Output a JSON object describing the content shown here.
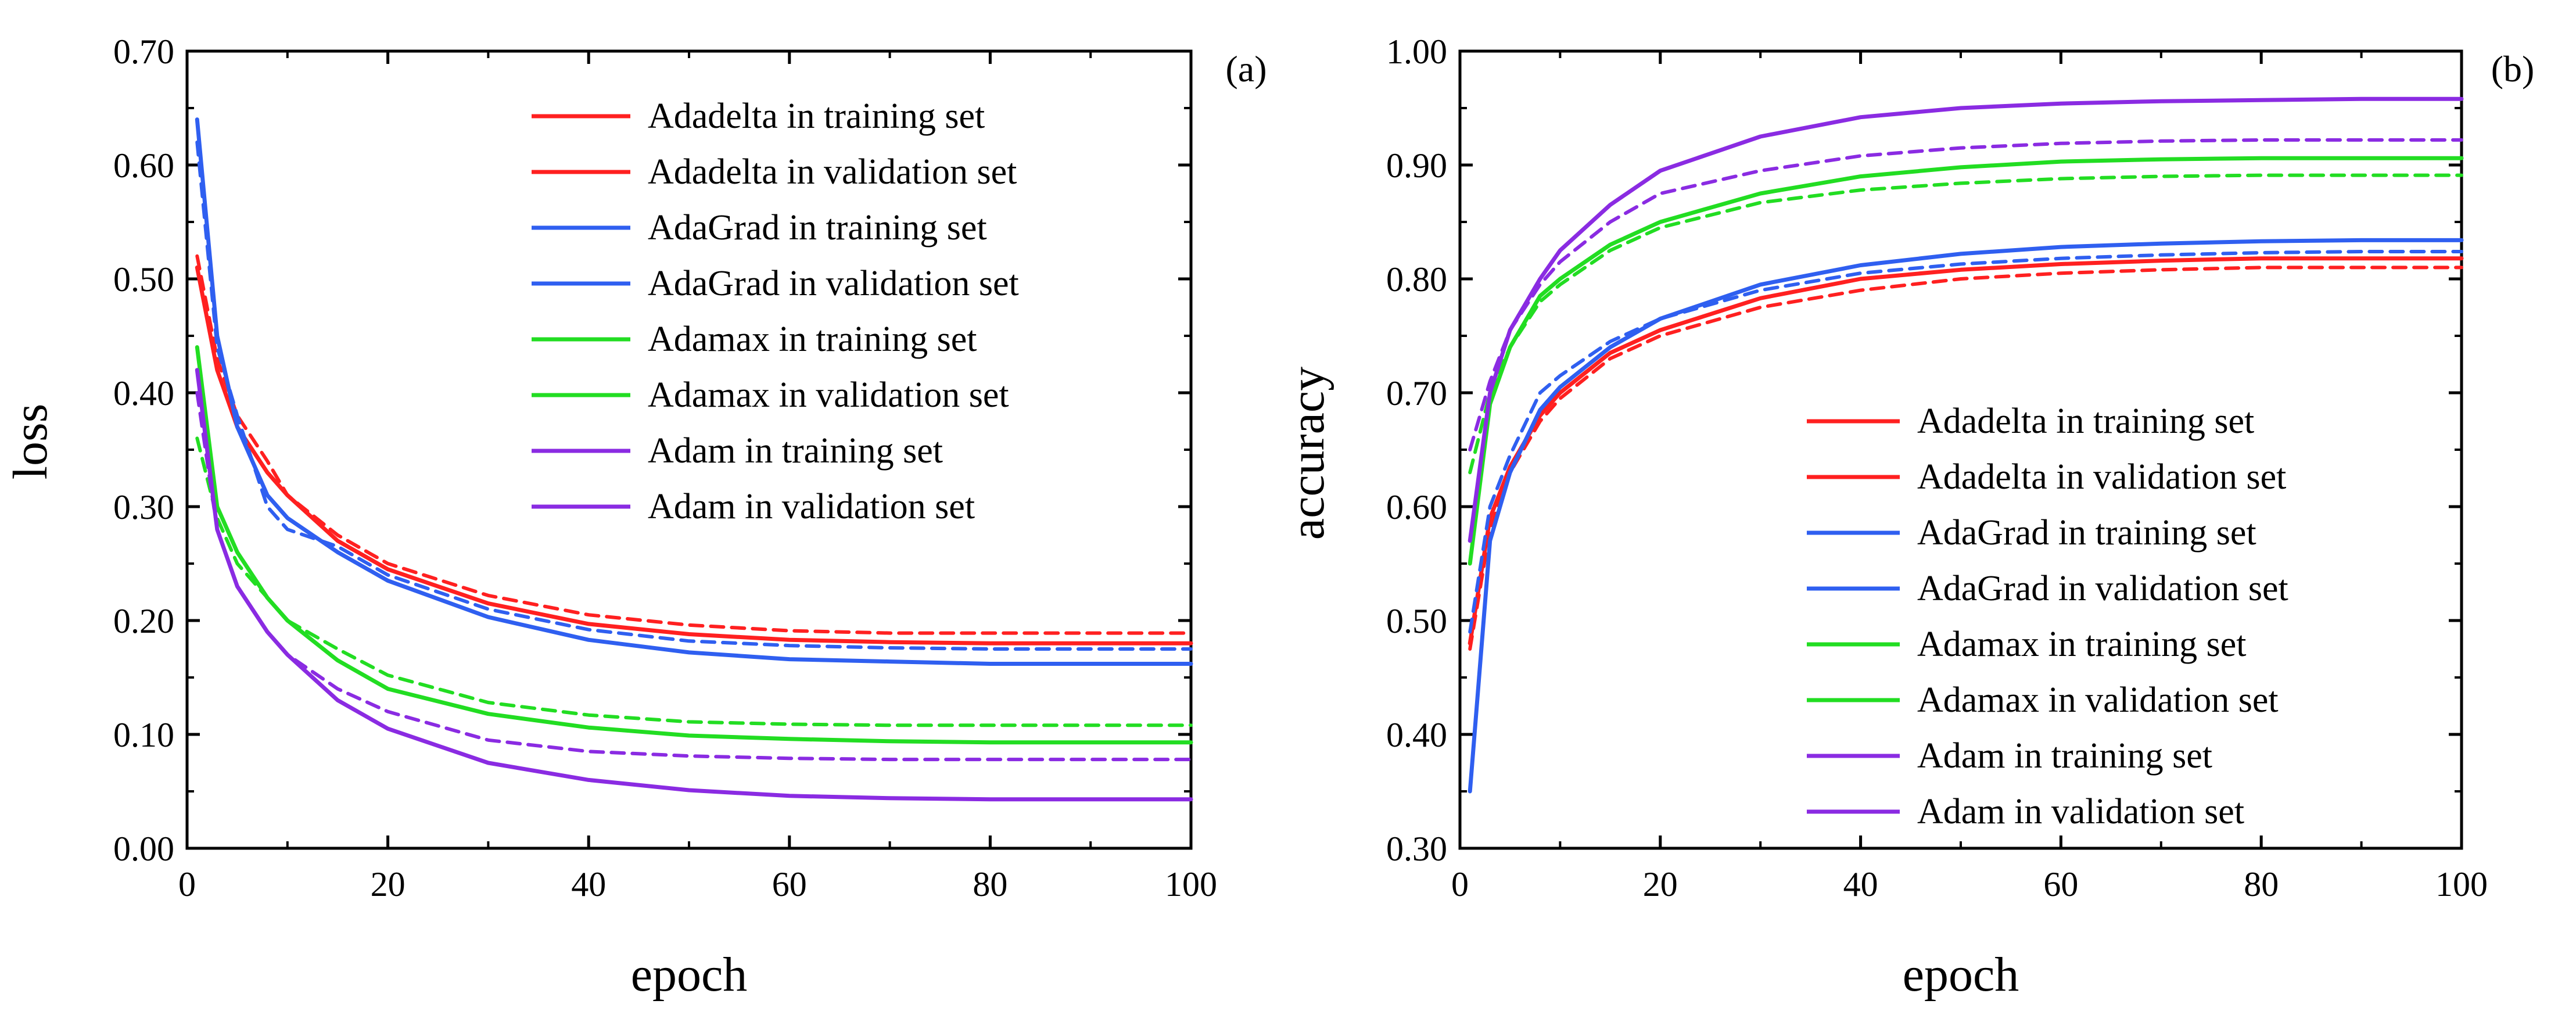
{
  "chart_data": [
    {
      "panel": "(a)",
      "type": "line",
      "xlabel": "epoch",
      "ylabel": "loss",
      "xlim": [
        0,
        100
      ],
      "ylim": [
        0,
        0.7
      ],
      "xticks": [
        "0",
        "20",
        "40",
        "60",
        "80",
        "100"
      ],
      "yticks": [
        "0.00",
        "0.10",
        "0.20",
        "0.30",
        "0.40",
        "0.50",
        "0.60",
        "0.70"
      ],
      "legend_position": "top-right",
      "x": [
        1,
        3,
        5,
        8,
        10,
        15,
        20,
        30,
        40,
        50,
        60,
        70,
        80,
        90,
        100
      ],
      "series": [
        {
          "name": "Adadelta in training set",
          "color": "#ff2020",
          "dash": false,
          "values": [
            0.51,
            0.42,
            0.37,
            0.33,
            0.31,
            0.27,
            0.245,
            0.215,
            0.197,
            0.188,
            0.183,
            0.181,
            0.18,
            0.18,
            0.18
          ]
        },
        {
          "name": "Adadelta in validation set",
          "color": "#ff2020",
          "dash": true,
          "values": [
            0.52,
            0.43,
            0.38,
            0.34,
            0.31,
            0.275,
            0.25,
            0.222,
            0.205,
            0.196,
            0.191,
            0.189,
            0.189,
            0.189,
            0.189
          ]
        },
        {
          "name": "AdaGrad in training set",
          "color": "#2f5ff0",
          "dash": false,
          "values": [
            0.64,
            0.45,
            0.37,
            0.31,
            0.29,
            0.26,
            0.235,
            0.203,
            0.183,
            0.172,
            0.166,
            0.164,
            0.162,
            0.162,
            0.162
          ]
        },
        {
          "name": "AdaGrad in validation set",
          "color": "#2f5ff0",
          "dash": true,
          "values": [
            0.62,
            0.44,
            0.38,
            0.3,
            0.28,
            0.265,
            0.24,
            0.21,
            0.192,
            0.182,
            0.178,
            0.176,
            0.175,
            0.175,
            0.175
          ]
        },
        {
          "name": "Adamax in training set",
          "color": "#22dd22",
          "dash": false,
          "values": [
            0.44,
            0.3,
            0.26,
            0.22,
            0.2,
            0.165,
            0.14,
            0.118,
            0.106,
            0.099,
            0.096,
            0.094,
            0.093,
            0.093,
            0.093
          ]
        },
        {
          "name": "Adamax in validation set",
          "color": "#22dd22",
          "dash": true,
          "values": [
            0.36,
            0.29,
            0.25,
            0.22,
            0.2,
            0.175,
            0.152,
            0.128,
            0.117,
            0.111,
            0.109,
            0.108,
            0.108,
            0.108,
            0.108
          ]
        },
        {
          "name": "Adam in training set",
          "color": "#8a2be2",
          "dash": false,
          "values": [
            0.42,
            0.28,
            0.23,
            0.19,
            0.17,
            0.13,
            0.105,
            0.075,
            0.06,
            0.051,
            0.046,
            0.044,
            0.043,
            0.043,
            0.043
          ]
        },
        {
          "name": "Adam in validation set",
          "color": "#8a2be2",
          "dash": true,
          "values": [
            0.4,
            0.28,
            0.23,
            0.19,
            0.17,
            0.14,
            0.12,
            0.095,
            0.085,
            0.081,
            0.079,
            0.078,
            0.078,
            0.078,
            0.078
          ]
        }
      ]
    },
    {
      "panel": "(b)",
      "type": "line",
      "xlabel": "epoch",
      "ylabel": "accuracy",
      "xlim": [
        0,
        100
      ],
      "ylim": [
        0.3,
        1.0
      ],
      "xticks": [
        "0",
        "20",
        "40",
        "60",
        "80",
        "100"
      ],
      "yticks": [
        "0.30",
        "0.40",
        "0.50",
        "0.60",
        "0.70",
        "0.80",
        "0.90",
        "1.00"
      ],
      "legend_position": "bottom-right",
      "x": [
        1,
        3,
        5,
        8,
        10,
        15,
        20,
        30,
        40,
        50,
        60,
        70,
        80,
        90,
        100
      ],
      "series": [
        {
          "name": "Adadelta in training set",
          "color": "#ff2020",
          "dash": false,
          "values": [
            0.48,
            0.59,
            0.635,
            0.68,
            0.7,
            0.735,
            0.755,
            0.783,
            0.8,
            0.808,
            0.813,
            0.816,
            0.818,
            0.818,
            0.818
          ]
        },
        {
          "name": "Adadelta in validation set",
          "color": "#ff2020",
          "dash": true,
          "values": [
            0.475,
            0.58,
            0.63,
            0.675,
            0.695,
            0.73,
            0.75,
            0.775,
            0.79,
            0.8,
            0.805,
            0.808,
            0.81,
            0.81,
            0.81
          ]
        },
        {
          "name": "AdaGrad in training set",
          "color": "#2f5ff0",
          "dash": false,
          "values": [
            0.35,
            0.57,
            0.63,
            0.685,
            0.705,
            0.74,
            0.765,
            0.795,
            0.812,
            0.822,
            0.828,
            0.831,
            0.833,
            0.834,
            0.834
          ]
        },
        {
          "name": "AdaGrad in validation set",
          "color": "#2f5ff0",
          "dash": true,
          "values": [
            0.49,
            0.6,
            0.645,
            0.7,
            0.715,
            0.745,
            0.765,
            0.79,
            0.805,
            0.813,
            0.818,
            0.821,
            0.823,
            0.824,
            0.824
          ]
        },
        {
          "name": "Adamax in training set",
          "color": "#22dd22",
          "dash": false,
          "values": [
            0.55,
            0.69,
            0.74,
            0.785,
            0.8,
            0.83,
            0.85,
            0.875,
            0.89,
            0.898,
            0.903,
            0.905,
            0.906,
            0.906,
            0.906
          ]
        },
        {
          "name": "Adamax in validation set",
          "color": "#22dd22",
          "dash": true,
          "values": [
            0.63,
            0.7,
            0.74,
            0.78,
            0.795,
            0.825,
            0.845,
            0.867,
            0.878,
            0.884,
            0.888,
            0.89,
            0.891,
            0.891,
            0.891
          ]
        },
        {
          "name": "Adam in training set",
          "color": "#8a2be2",
          "dash": false,
          "values": [
            0.57,
            0.7,
            0.755,
            0.8,
            0.825,
            0.865,
            0.895,
            0.925,
            0.942,
            0.95,
            0.954,
            0.956,
            0.957,
            0.958,
            0.958
          ]
        },
        {
          "name": "Adam in validation set",
          "color": "#8a2be2",
          "dash": true,
          "values": [
            0.65,
            0.71,
            0.755,
            0.795,
            0.815,
            0.85,
            0.875,
            0.895,
            0.908,
            0.915,
            0.919,
            0.921,
            0.922,
            0.922,
            0.922
          ]
        }
      ]
    }
  ]
}
